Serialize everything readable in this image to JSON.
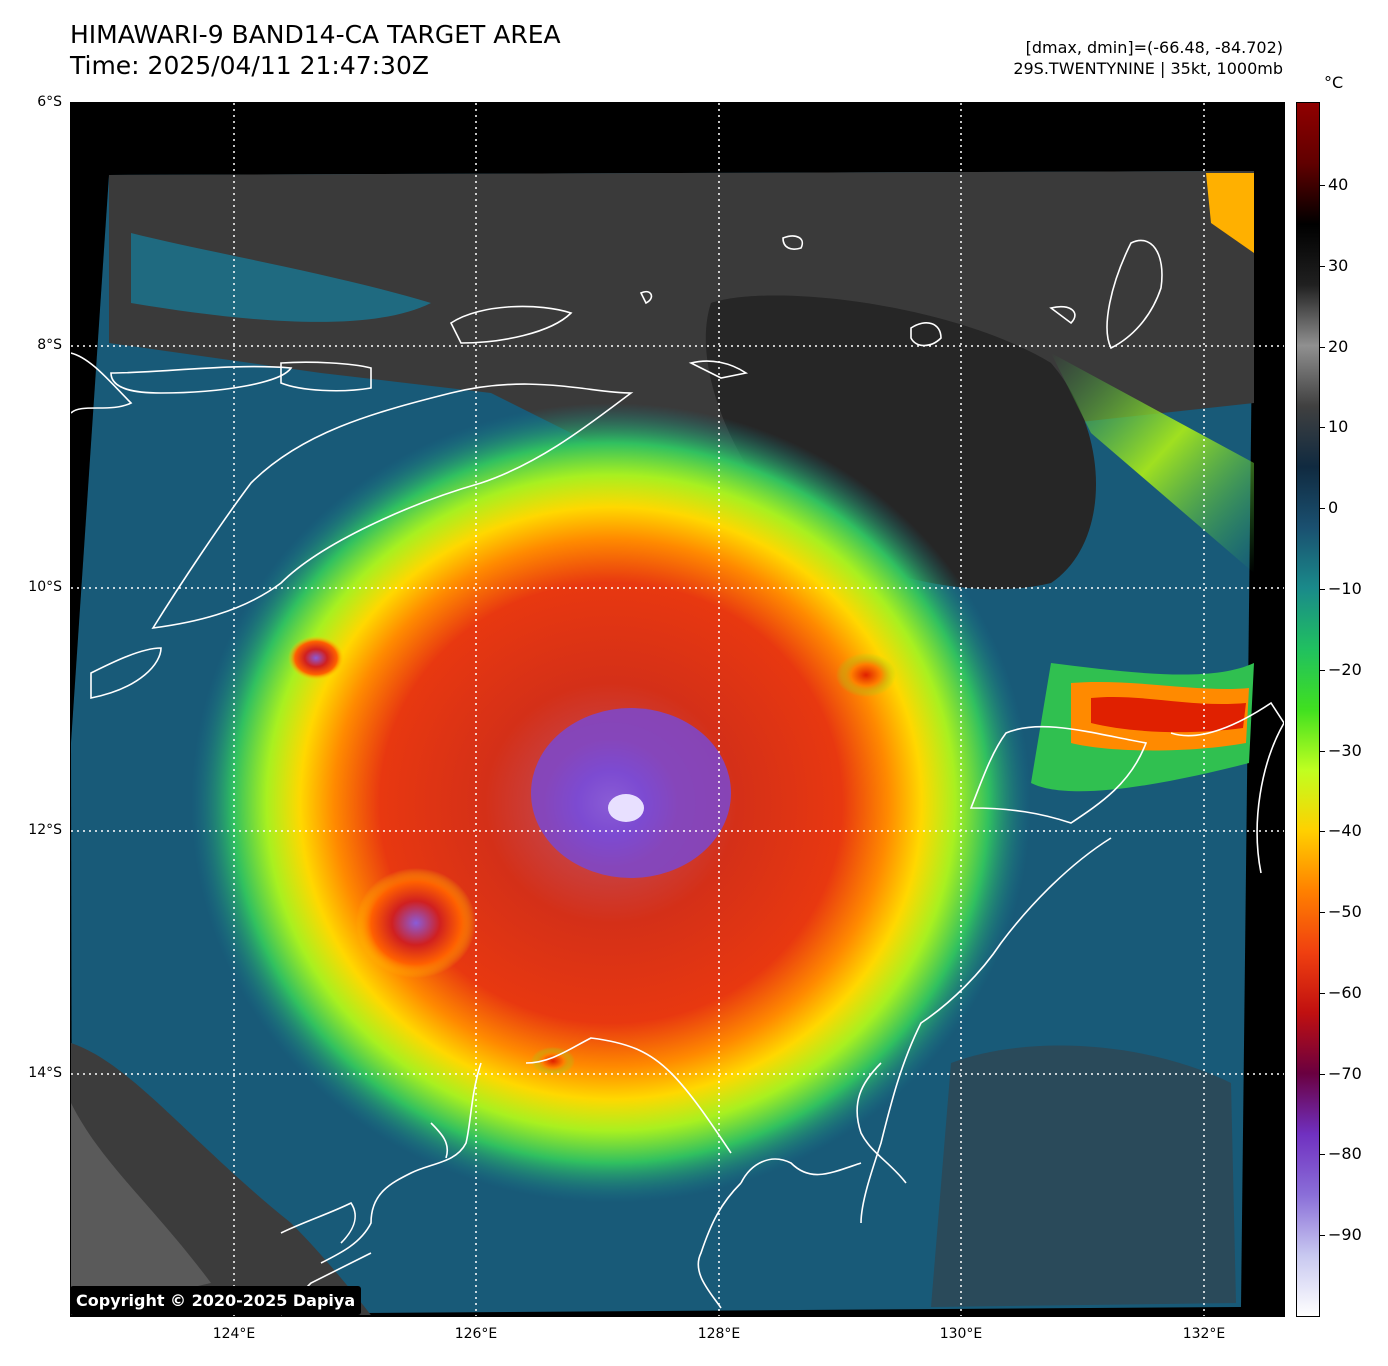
{
  "header": {
    "title_line1": "HIMAWARI-9 BAND14-CA TARGET AREA",
    "title_line2": "Time: 2025/04/11 21:47:30Z",
    "info_line1": "[dmax, dmin]=(-66.48, -84.702)",
    "info_line2": "29S.TWENTYNINE | 35kt, 1000mb"
  },
  "colorbar": {
    "unit": "°C",
    "ticks": [
      "40",
      "30",
      "20",
      "10",
      "0",
      "−10",
      "−20",
      "−30",
      "−40",
      "−50",
      "−60",
      "−70",
      "−80",
      "−90"
    ],
    "colors": [
      "#ffffff",
      "#c8c8f0",
      "#8a6ed8",
      "#7030c0",
      "#6a0040",
      "#c01010",
      "#f04010",
      "#ff8000",
      "#ffd000",
      "#c0ff20",
      "#40e020",
      "#20c060",
      "#1a8a8a",
      "#1a5070",
      "#102a40",
      "#404040",
      "#909090",
      "#202020",
      "#000000",
      "#600000",
      "#900000"
    ]
  },
  "axes": {
    "lat_labels": [
      "6°S",
      "8°S",
      "10°S",
      "12°S",
      "14°S"
    ],
    "lon_labels": [
      "124°E",
      "126°E",
      "128°E",
      "130°E",
      "132°E"
    ]
  },
  "copyright": "Copyright © 2020-2025 Dapiya"
}
